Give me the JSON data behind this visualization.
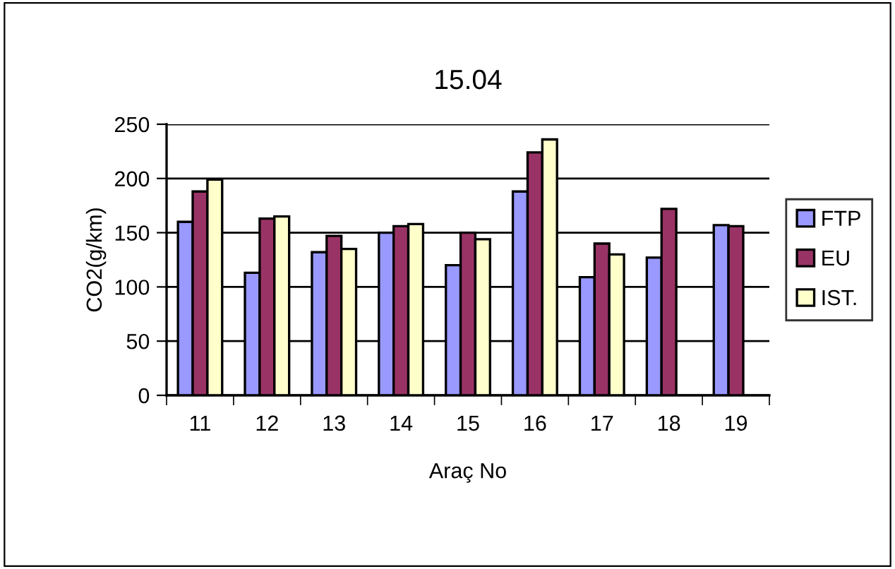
{
  "chart_data": {
    "type": "bar",
    "title": "15.04",
    "xlabel": "Araç No",
    "ylabel": "CO2(g/km)",
    "categories": [
      "11",
      "12",
      "13",
      "14",
      "15",
      "16",
      "17",
      "18",
      "19"
    ],
    "series": [
      {
        "name": "FTP",
        "color": "#9999ff",
        "values": [
          160,
          113,
          132,
          150,
          120,
          188,
          109,
          127,
          157
        ]
      },
      {
        "name": "EU",
        "color": "#993366",
        "values": [
          188,
          163,
          147,
          156,
          150,
          224,
          140,
          172,
          156
        ]
      },
      {
        "name": "IST.",
        "color": "#ffffcc",
        "values": [
          199,
          165,
          135,
          158,
          144,
          236,
          130,
          null,
          null
        ]
      }
    ],
    "ylim": [
      0,
      250
    ],
    "yticks": [
      0,
      50,
      100,
      150,
      200,
      250
    ],
    "grid": "y",
    "legend": "right"
  }
}
